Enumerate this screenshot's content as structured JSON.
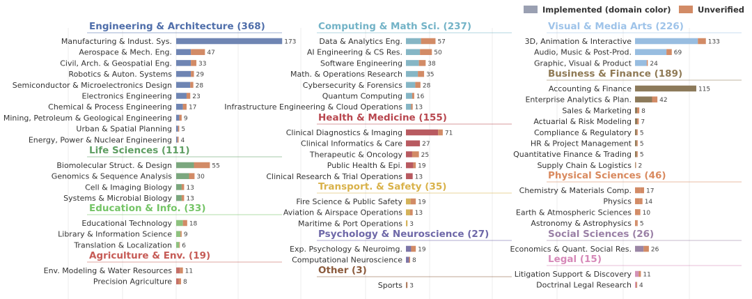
{
  "chart_data": {
    "type": "bar",
    "orientation": "horizontal",
    "stacked": true,
    "legend": {
      "placement": "top-right",
      "entries": [
        {
          "label": "Implemented (domain color)",
          "color": "#9aa0b2"
        },
        {
          "label": "Unverified",
          "color": "#d28b66"
        }
      ]
    },
    "unverified_color": "#d28b66",
    "columns": [
      {
        "groups": [
          {
            "name": "Engineering & Architecture",
            "count": 368,
            "color": "#4f6eaa",
            "light": "#6f85b3",
            "items": [
              {
                "label": "Manufacturing & Indust. Sys.",
                "implemented": 173,
                "unverified": 0,
                "total": 173
              },
              {
                "label": "Aerospace & Mech. Eng.",
                "implemented": 24,
                "unverified": 23,
                "total": 47
              },
              {
                "label": "Civil, Arch. & Geospatial Eng.",
                "implemented": 24,
                "unverified": 9,
                "total": 33
              },
              {
                "label": "Robotics & Auton. Systems",
                "implemented": 24,
                "unverified": 5,
                "total": 29
              },
              {
                "label": "Semiconductor & Microelectronics Design",
                "implemented": 23,
                "unverified": 5,
                "total": 28
              },
              {
                "label": "Electronics Engineering",
                "implemented": 17,
                "unverified": 6,
                "total": 23
              },
              {
                "label": "Chemical & Process Engineering",
                "implemented": 11,
                "unverified": 6,
                "total": 17
              },
              {
                "label": "Mining, Petroleum & Geological Engineering",
                "implemented": 5,
                "unverified": 4,
                "total": 9
              },
              {
                "label": "Urban & Spatial Planning",
                "implemented": 3,
                "unverified": 2,
                "total": 5
              },
              {
                "label": "Energy, Power & Nuclear Engineering",
                "implemented": 2,
                "unverified": 2,
                "total": 4
              }
            ]
          },
          {
            "name": "Life Sciences",
            "count": 111,
            "color": "#5e9e62",
            "light": "#7ba77e",
            "items": [
              {
                "label": "Biomolecular Struct. & Design",
                "implemented": 29,
                "unverified": 26,
                "total": 55
              },
              {
                "label": "Genomics & Sequence Analysis",
                "implemented": 21,
                "unverified": 9,
                "total": 30
              },
              {
                "label": "Cell & Imaging Biology",
                "implemented": 9,
                "unverified": 4,
                "total": 13
              },
              {
                "label": "Systems & Microbial Biology",
                "implemented": 9,
                "unverified": 4,
                "total": 13
              }
            ]
          },
          {
            "name": "Education & Info.",
            "count": 33,
            "color": "#74c466",
            "light": "#8ec27f",
            "items": [
              {
                "label": "Educational Technology",
                "implemented": 11,
                "unverified": 7,
                "total": 18
              },
              {
                "label": "Library & Information Science",
                "implemented": 7,
                "unverified": 2,
                "total": 9
              },
              {
                "label": "Translation & Localization",
                "implemented": 5,
                "unverified": 1,
                "total": 6
              }
            ]
          },
          {
            "name": "Agriculture & Env.",
            "count": 19,
            "color": "#c65b56",
            "light": "#c46f68",
            "items": [
              {
                "label": "Env. Modeling & Water Resources",
                "implemented": 6,
                "unverified": 5,
                "total": 11
              },
              {
                "label": "Precision Agriculture",
                "implemented": 4,
                "unverified": 4,
                "total": 8
              }
            ]
          }
        ]
      },
      {
        "groups": [
          {
            "name": "Computing & Math Sci.",
            "count": 237,
            "color": "#73b3c7",
            "light": "#86b6c5",
            "items": [
              {
                "label": "Data & Analytics Eng.",
                "implemented": 29,
                "unverified": 28,
                "total": 57
              },
              {
                "label": "AI Engineering & CS Res.",
                "implemented": 27,
                "unverified": 23,
                "total": 50
              },
              {
                "label": "Software Engineering",
                "implemented": 25,
                "unverified": 13,
                "total": 38
              },
              {
                "label": "Math. & Operations Research",
                "implemented": 23,
                "unverified": 12,
                "total": 35
              },
              {
                "label": "Cybersecurity & Forensics",
                "implemented": 18,
                "unverified": 10,
                "total": 28
              },
              {
                "label": "Quantum Computing",
                "implemented": 12,
                "unverified": 4,
                "total": 16
              },
              {
                "label": "Infrastructure Engineering & Cloud Operations",
                "implemented": 10,
                "unverified": 3,
                "total": 13
              }
            ]
          },
          {
            "name": "Health & Medicine",
            "count": 155,
            "color": "#b8474f",
            "light": "#b85a60",
            "items": [
              {
                "label": "Clinical Diagnostics & Imaging",
                "implemented": 62,
                "unverified": 9,
                "total": 71
              },
              {
                "label": "Clinical Informatics & Care",
                "implemented": 27,
                "unverified": 0,
                "total": 27
              },
              {
                "label": "Therapeutic & Oncology",
                "implemented": 12,
                "unverified": 13,
                "total": 25
              },
              {
                "label": "Public Health & Epi.",
                "implemented": 14,
                "unverified": 5,
                "total": 19
              },
              {
                "label": "Clinical Research & Trial Operations",
                "implemented": 13,
                "unverified": 0,
                "total": 13
              }
            ]
          },
          {
            "name": "Transport. & Safety",
            "count": 35,
            "color": "#d9b24a",
            "light": "#d4b35a",
            "items": [
              {
                "label": "Fire Science & Public Safety",
                "implemented": 9,
                "unverified": 10,
                "total": 19
              },
              {
                "label": "Aviation & Airspace Operations",
                "implemented": 8,
                "unverified": 5,
                "total": 13
              },
              {
                "label": "Maritime & Port Operations",
                "implemented": 3,
                "unverified": 0,
                "total": 3
              }
            ]
          },
          {
            "name": "Psychology & Neuroscience",
            "count": 27,
            "color": "#6e68a8",
            "light": "#7d76a8",
            "items": [
              {
                "label": "Exp. Psychology & Neuroimg.",
                "implemented": 10,
                "unverified": 9,
                "total": 19
              },
              {
                "label": "Computational Neuroscience",
                "implemented": 6,
                "unverified": 2,
                "total": 8
              }
            ]
          },
          {
            "name": "Other",
            "count": 3,
            "color": "#8b5a3c",
            "light": "#a37a60",
            "items": [
              {
                "label": "Sports",
                "implemented": 2,
                "unverified": 1,
                "total": 3
              }
            ]
          }
        ]
      },
      {
        "groups": [
          {
            "name": "Visual & Media Arts",
            "count": 226,
            "color": "#9ec3e9",
            "light": "#98bde0",
            "items": [
              {
                "label": "3D, Animation & Interactive",
                "implemented": 118,
                "unverified": 15,
                "total": 133
              },
              {
                "label": "Audio, Music & Post-Prod.",
                "implemented": 59,
                "unverified": 10,
                "total": 69
              },
              {
                "label": "Graphic, Visual & Product",
                "implemented": 22,
                "unverified": 2,
                "total": 24
              }
            ]
          },
          {
            "name": "Business & Finance",
            "count": 189,
            "color": "#8f7a55",
            "light": "#8c7a5a",
            "items": [
              {
                "label": "Accounting & Finance",
                "implemented": 115,
                "unverified": 0,
                "total": 115
              },
              {
                "label": "Enterprise Analytics & Plan.",
                "implemented": 32,
                "unverified": 10,
                "total": 42
              },
              {
                "label": "Sales & Marketing",
                "implemented": 4,
                "unverified": 4,
                "total": 8
              },
              {
                "label": "Actuarial & Risk Modeling",
                "implemented": 4,
                "unverified": 3,
                "total": 7
              },
              {
                "label": "Compliance & Regulatory",
                "implemented": 3,
                "unverified": 2,
                "total": 5
              },
              {
                "label": "HR & Project Management",
                "implemented": 3,
                "unverified": 2,
                "total": 5
              },
              {
                "label": "Quantitative Finance & Trading",
                "implemented": 3,
                "unverified": 2,
                "total": 5
              },
              {
                "label": "Supply Chain & Logistics",
                "implemented": 1,
                "unverified": 1,
                "total": 2
              }
            ]
          },
          {
            "name": "Physical Sciences",
            "count": 46,
            "color": "#d98a5f",
            "light": "#d28b66",
            "items": [
              {
                "label": "Chemistry & Materials Comp.",
                "implemented": 10,
                "unverified": 7,
                "total": 17
              },
              {
                "label": "Physics",
                "implemented": 8,
                "unverified": 6,
                "total": 14
              },
              {
                "label": "Earth & Atmospheric Sciences",
                "implemented": 6,
                "unverified": 4,
                "total": 10
              },
              {
                "label": "Astronomy & Astrophysics",
                "implemented": 3,
                "unverified": 2,
                "total": 5
              }
            ]
          },
          {
            "name": "Social Sciences",
            "count": 26,
            "color": "#9a80a6",
            "light": "#9b86a5",
            "items": [
              {
                "label": "Economics & Quant. Social Res.",
                "implemented": 16,
                "unverified": 10,
                "total": 26
              }
            ]
          },
          {
            "name": "Legal",
            "count": 15,
            "color": "#d688b8",
            "light": "#d393b8",
            "items": [
              {
                "label": "Litigation Support & Discovery",
                "implemented": 7,
                "unverified": 4,
                "total": 11
              },
              {
                "label": "Doctrinal Legal Research",
                "implemented": 2,
                "unverified": 2,
                "total": 4
              }
            ]
          }
        ]
      }
    ]
  }
}
